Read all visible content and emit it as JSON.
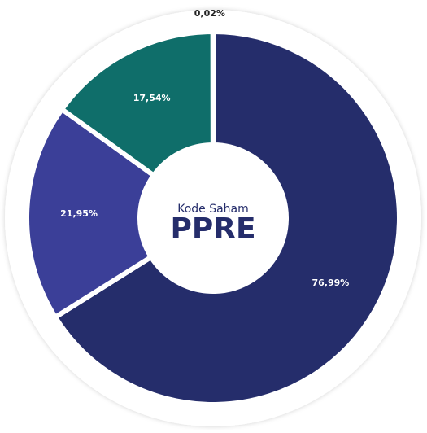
{
  "chart_data": {
    "type": "donut",
    "center_label": "Kode Saham",
    "center_title": "PPRE",
    "values": [
      76.99,
      21.95,
      17.54,
      0.02
    ],
    "value_labels": [
      "76,99%",
      "21,95%",
      "17,54%",
      "0,02%"
    ],
    "colors": [
      "#252d6b",
      "#3b3f98",
      "#0f6e6a",
      "#2bb5b5"
    ]
  }
}
